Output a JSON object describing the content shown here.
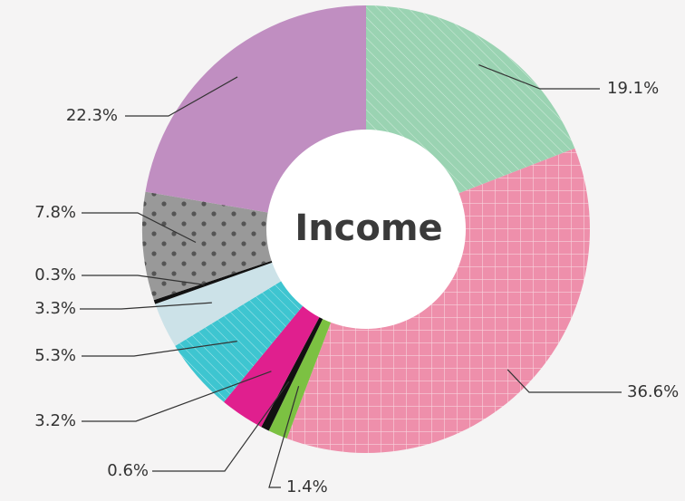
{
  "chart_data": {
    "type": "pie",
    "title": "Income",
    "donut": true,
    "start_angle_deg": 0,
    "direction": "clockwise",
    "slices": [
      {
        "value": 19.1,
        "label": "19.1%",
        "color": "#9ad3b2",
        "pattern": "diagonal"
      },
      {
        "value": 36.6,
        "label": "36.6%",
        "color": "#ee8fab",
        "pattern": "grid"
      },
      {
        "value": 1.4,
        "label": "1.4%",
        "color": "#7cc142",
        "pattern": "none"
      },
      {
        "value": 0.6,
        "label": "0.6%",
        "color": "#111111",
        "pattern": "none"
      },
      {
        "value": 3.2,
        "label": "3.2%",
        "color": "#e01f8e",
        "pattern": "none"
      },
      {
        "value": 5.3,
        "label": "5.3%",
        "color": "#3ec5d0",
        "pattern": "diagonal"
      },
      {
        "value": 3.3,
        "label": "3.3%",
        "color": "#cce2e8",
        "pattern": "none"
      },
      {
        "value": 0.3,
        "label": "0.3%",
        "color": "#111111",
        "pattern": "none"
      },
      {
        "value": 7.8,
        "label": "7.8%",
        "color": "#999999",
        "pattern": "dots"
      },
      {
        "value": 22.3,
        "label": "22.3%",
        "color": "#c08ec1",
        "pattern": "none"
      }
    ]
  }
}
